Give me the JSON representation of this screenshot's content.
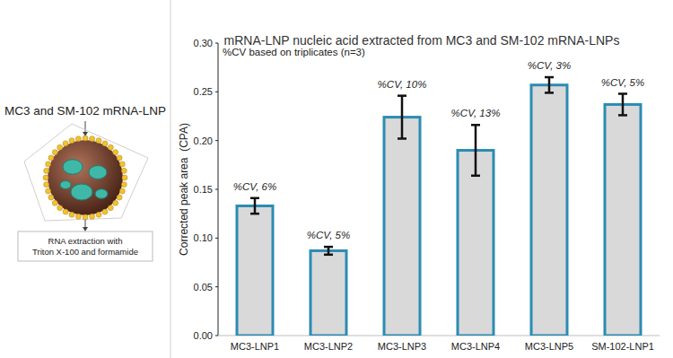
{
  "chart_data": {
    "type": "bar",
    "title": "mRNA-LNP nucleic acid extracted from MC3 and SM-102 mRNA-LNPs",
    "y_label": "Corrected peak area  (CPA)",
    "annotation": "%CV based on triplicates (n=3)",
    "categories": [
      "MC3-LNP1",
      "MC3-LNP2",
      "MC3-LNP3",
      "MC3-LNP4",
      "MC3-LNP5",
      "SM-102-LNP1"
    ],
    "values": [
      0.133,
      0.087,
      0.224,
      0.19,
      0.257,
      0.237
    ],
    "errors": [
      0.008,
      0.004,
      0.022,
      0.026,
      0.008,
      0.011
    ],
    "cv_labels": [
      "%CV, 6%",
      "%CV, 5%",
      "%CV, 10%",
      "%CV, 13%",
      "%CV, 3%",
      "%CV, 5%"
    ],
    "color": "#d9d9d9",
    "ylim": [
      0,
      0.3
    ],
    "yticks": [
      {
        "value": 0,
        "label": "0.00"
      },
      {
        "value": 0.05,
        "label": "0.05"
      },
      {
        "value": 0.1,
        "label": "0.10"
      },
      {
        "value": 0.15,
        "label": "0.15"
      },
      {
        "value": 0.2,
        "label": "0.20"
      },
      {
        "value": 0.25,
        "label": "0.25"
      },
      {
        "value": 0.3,
        "label": "0.30"
      }
    ],
    "grid": false
  },
  "diagram": {
    "label": "MC3 and SM-102 mRNA-LNP",
    "step_lines": [
      "RNA extraction with",
      "Triton X-100 and formamide"
    ]
  }
}
